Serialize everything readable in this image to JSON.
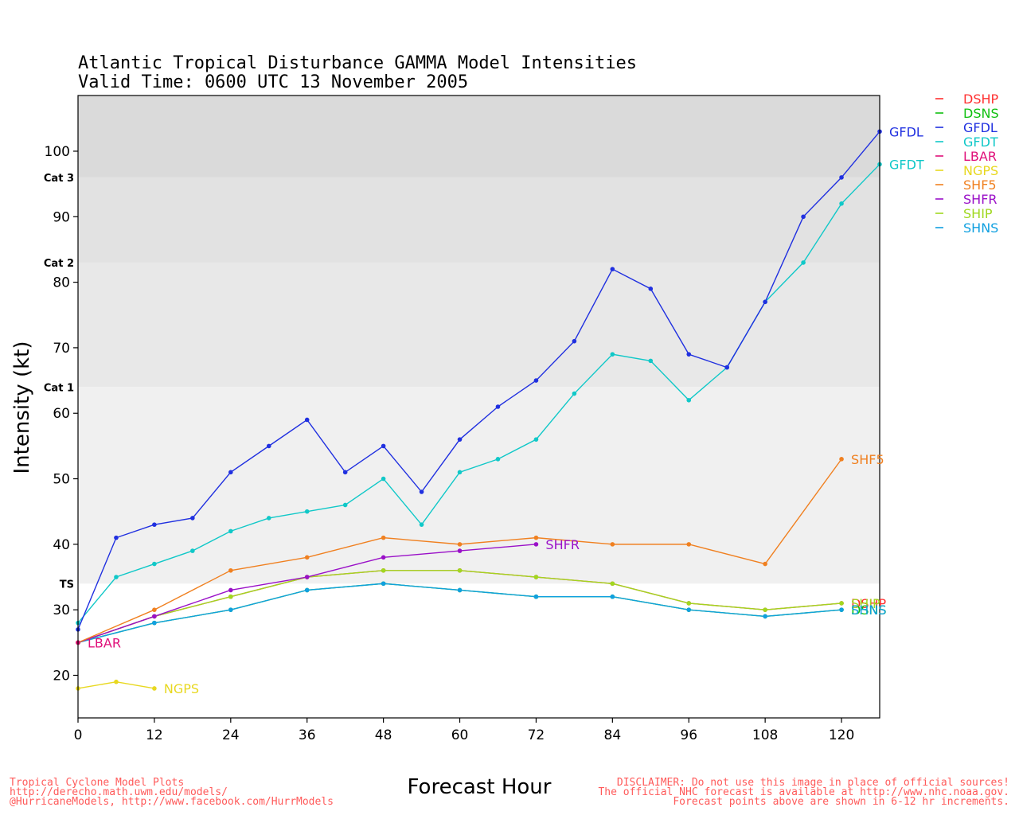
{
  "chart_data": {
    "type": "line",
    "title": "Atlantic Tropical Disturbance GAMMA Model Intensities",
    "subtitle": "Valid Time: 0600 UTC 13 November 2005",
    "xlabel": "Forecast Hour",
    "ylabel": "Intensity (kt)",
    "xlim": [
      0,
      126
    ],
    "ylim": [
      13.5,
      108.5
    ],
    "xticks": [
      0,
      12,
      24,
      36,
      48,
      60,
      72,
      84,
      96,
      108,
      120
    ],
    "yticks": [
      20,
      30,
      40,
      50,
      60,
      70,
      80,
      90,
      100
    ],
    "grid": false,
    "legend_position": "right",
    "bands": [
      {
        "from": 13.5,
        "to": 34,
        "color": "#ffffff"
      },
      {
        "from": 34,
        "to": 64,
        "color": "#f0f0f0"
      },
      {
        "from": 64,
        "to": 83,
        "color": "#e8e8e8"
      },
      {
        "from": 83,
        "to": 96,
        "color": "#e2e2e2"
      },
      {
        "from": 96,
        "to": 108.5,
        "color": "#dadada"
      }
    ],
    "category_labels": [
      {
        "label": "TS",
        "value": 34
      },
      {
        "label": "Cat 1",
        "value": 64
      },
      {
        "label": "Cat 2",
        "value": 83
      },
      {
        "label": "Cat 3",
        "value": 96
      }
    ],
    "series": [
      {
        "name": "DSHP",
        "color": "#ff3030",
        "end_label": "DSHP",
        "x": [
          0,
          12,
          24,
          36,
          48,
          60,
          72,
          84,
          96,
          108,
          120
        ],
        "y": [
          25,
          29,
          32,
          35,
          36,
          36,
          35,
          34,
          31,
          30,
          31
        ]
      },
      {
        "name": "DSNS",
        "color": "#10c010",
        "end_label": "DSNS",
        "x": [
          0,
          12,
          24,
          36,
          48,
          60,
          72,
          84,
          96,
          108,
          120
        ],
        "y": [
          25,
          28,
          30,
          33,
          34,
          33,
          32,
          32,
          30,
          29,
          30
        ]
      },
      {
        "name": "GFDL",
        "color": "#2030e0",
        "end_label": "GFDL",
        "x": [
          0,
          6,
          12,
          18,
          24,
          30,
          36,
          42,
          48,
          54,
          60,
          66,
          72,
          78,
          84,
          90,
          96,
          102,
          108,
          114,
          120,
          126
        ],
        "y": [
          27,
          41,
          43,
          44,
          51,
          55,
          59,
          51,
          55,
          48,
          56,
          61,
          65,
          71,
          82,
          79,
          69,
          67,
          77,
          90,
          96,
          103
        ]
      },
      {
        "name": "GFDT",
        "color": "#10c8c8",
        "end_label": "GFDT",
        "x": [
          0,
          6,
          12,
          18,
          24,
          30,
          36,
          42,
          48,
          54,
          60,
          66,
          72,
          78,
          84,
          90,
          96,
          102,
          108,
          114,
          120,
          126
        ],
        "y": [
          28,
          35,
          37,
          39,
          42,
          44,
          45,
          46,
          50,
          43,
          51,
          53,
          56,
          63,
          69,
          68,
          62,
          67,
          77,
          83,
          92,
          98
        ]
      },
      {
        "name": "LBAR",
        "color": "#e0107a",
        "end_label": "LBAR",
        "x": [
          0
        ],
        "y": [
          25
        ]
      },
      {
        "name": "NGPS",
        "color": "#e8d820",
        "end_label": "NGPS",
        "x": [
          0,
          6,
          12
        ],
        "y": [
          18,
          19,
          18
        ]
      },
      {
        "name": "SHF5",
        "color": "#f08020",
        "end_label": "SHF5",
        "x": [
          0,
          12,
          24,
          36,
          48,
          60,
          72,
          84,
          96,
          108,
          120
        ],
        "y": [
          25,
          30,
          36,
          38,
          41,
          40,
          41,
          40,
          40,
          37,
          53
        ]
      },
      {
        "name": "SHFR",
        "color": "#9a10c8",
        "end_label": "SHFR",
        "x": [
          0,
          12,
          24,
          36,
          48,
          60,
          72
        ],
        "y": [
          25,
          29,
          33,
          35,
          38,
          39,
          40
        ]
      },
      {
        "name": "SHIP",
        "color": "#a0d820",
        "end_label": "SHIP",
        "x": [
          0,
          12,
          24,
          36,
          48,
          60,
          72,
          84,
          96,
          108,
          120
        ],
        "y": [
          25,
          29,
          32,
          35,
          36,
          36,
          35,
          34,
          31,
          30,
          31
        ]
      },
      {
        "name": "SHNS",
        "color": "#10a0e0",
        "end_label": "SHNS",
        "x": [
          0,
          12,
          24,
          36,
          48,
          60,
          72,
          84,
          96,
          108,
          120
        ],
        "y": [
          25,
          28,
          30,
          33,
          34,
          33,
          32,
          32,
          30,
          29,
          30
        ]
      }
    ]
  },
  "footer": {
    "left": [
      "Tropical Cyclone Model Plots",
      "http://derecho.math.uwm.edu/models/",
      "@HurricaneModels, http://www.facebook.com/HurrModels"
    ],
    "right": [
      "DISCLAIMER: Do not use this image in place of official sources!",
      "The official NHC forecast is available at http://www.nhc.noaa.gov.",
      "Forecast points above are shown in 6-12 hr increments."
    ],
    "color": "#ff5a5a"
  }
}
